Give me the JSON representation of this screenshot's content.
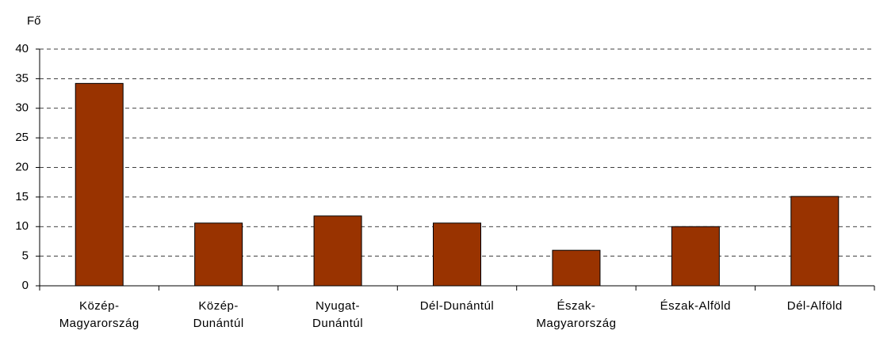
{
  "chart_data": {
    "type": "bar",
    "y_label": "Fő",
    "categories": [
      "Közép-\nMagyarország",
      "Közép-\nDunántúl",
      "Nyugat-\nDunántúl",
      "Dél-Dunántúl",
      "Észak-\nMagyarország",
      "Észak-Alföld",
      "Dél-Alföld"
    ],
    "values": [
      34.2,
      10.6,
      11.8,
      10.6,
      6.0,
      10.0,
      15.1
    ],
    "color": "#993300",
    "ylim": [
      0,
      40
    ],
    "yticks": [
      0,
      5,
      10,
      15,
      20,
      25,
      30,
      35,
      40
    ],
    "grid": true
  }
}
